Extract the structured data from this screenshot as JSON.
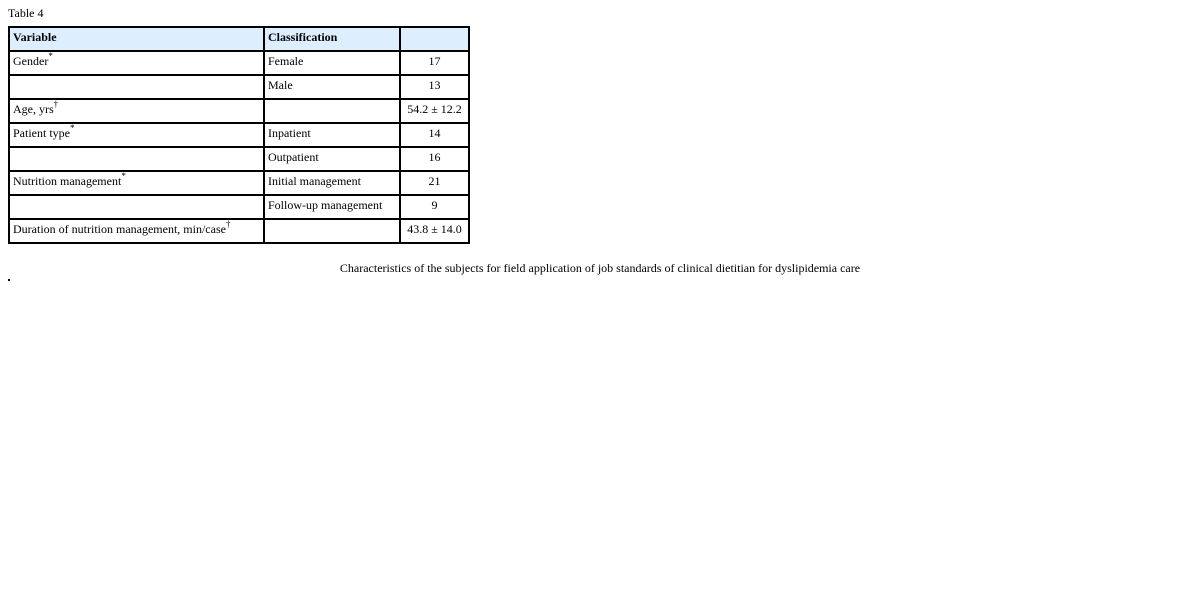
{
  "table_label": "Table 4",
  "headers": [
    "Variable",
    "Classification",
    ""
  ],
  "rows": [
    {
      "variable": "Gender",
      "mark": "*",
      "classification": "Female",
      "value": "17"
    },
    {
      "variable": "",
      "mark": "",
      "classification": "Male",
      "value": "13"
    },
    {
      "variable": "Age, yrs",
      "mark": "†",
      "classification": "",
      "value": "54.2 ± 12.2"
    },
    {
      "variable": "Patient type",
      "mark": "*",
      "classification": "Inpatient",
      "value": "14"
    },
    {
      "variable": "",
      "mark": "",
      "classification": "Outpatient",
      "value": "16"
    },
    {
      "variable": "Nutrition management",
      "mark": "*",
      "classification": "Initial management",
      "value": "21"
    },
    {
      "variable": "",
      "mark": "",
      "classification": "Follow-up management",
      "value": "9"
    },
    {
      "variable": "Duration of nutrition management, min/case",
      "mark": "†",
      "classification": "",
      "value": "43.8 ± 14.0"
    }
  ],
  "caption": "Characteristics of the subjects for field application of job standards of clinical dietitian for dyslipidemia care",
  "colors": {
    "header_bg": "#ddeeff",
    "border": "#000000"
  }
}
